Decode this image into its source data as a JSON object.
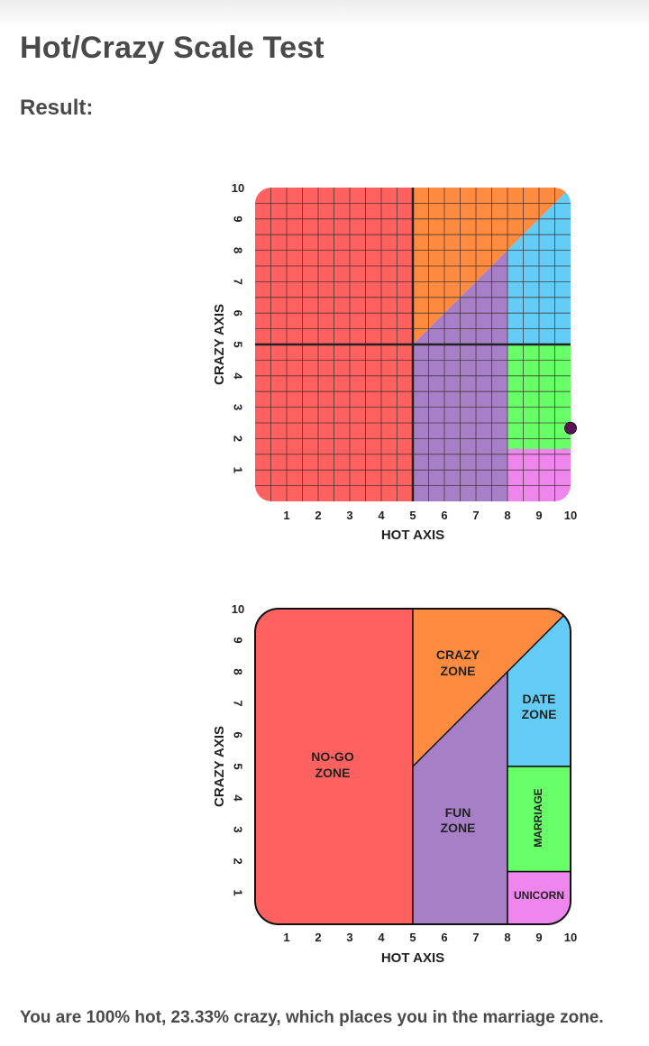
{
  "page": {
    "title": "Hot/Crazy Scale Test",
    "result_label": "Result:",
    "result_text": "You are 100% hot, 23.33% crazy, which places you in the marriage zone."
  },
  "colors": {
    "nogo": "#fe6160",
    "crazy": "#fe8b40",
    "fun": "#a67fc7",
    "date": "#63cdf7",
    "marriage": "#67fe67",
    "unicorn": "#ee86ee",
    "marker": "#5a1454"
  },
  "chart_data": [
    {
      "type": "scatter",
      "xlabel": "HOT AXIS",
      "ylabel": "CRAZY AXIS",
      "xticks": [
        "1",
        "2",
        "3",
        "4",
        "5",
        "6",
        "7",
        "8",
        "9",
        "10"
      ],
      "yticks": [
        "1",
        "2",
        "3",
        "4",
        "5",
        "6",
        "7",
        "8",
        "9",
        "10"
      ],
      "xlim": [
        0,
        10
      ],
      "ylim": [
        0,
        10
      ],
      "grid": true,
      "points": [
        {
          "x": 10,
          "y": 2.333
        }
      ]
    },
    {
      "type": "zone-map",
      "xlabel": "HOT AXIS",
      "ylabel": "CRAZY AXIS",
      "xticks": [
        "1",
        "2",
        "3",
        "4",
        "5",
        "6",
        "7",
        "8",
        "9",
        "10"
      ],
      "yticks": [
        "1",
        "2",
        "3",
        "4",
        "5",
        "6",
        "7",
        "8",
        "9",
        "10"
      ],
      "xlim": [
        0,
        10
      ],
      "ylim": [
        0,
        10
      ],
      "zones": {
        "nogo": [
          "NO-GO",
          "ZONE"
        ],
        "crazy": [
          "CRAZY",
          "ZONE"
        ],
        "fun": [
          "FUN",
          "ZONE"
        ],
        "date": [
          "DATE",
          "ZONE"
        ],
        "marriage": "MARRIAGE",
        "unicorn": "UNICORN"
      }
    }
  ]
}
